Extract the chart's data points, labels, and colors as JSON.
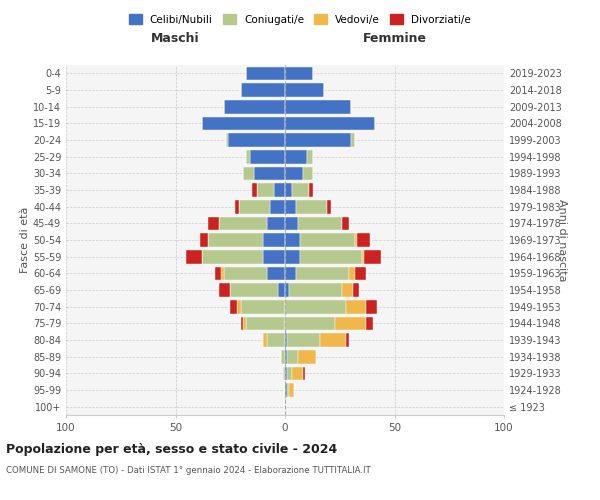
{
  "age_groups": [
    "100+",
    "95-99",
    "90-94",
    "85-89",
    "80-84",
    "75-79",
    "70-74",
    "65-69",
    "60-64",
    "55-59",
    "50-54",
    "45-49",
    "40-44",
    "35-39",
    "30-34",
    "25-29",
    "20-24",
    "15-19",
    "10-14",
    "5-9",
    "0-4"
  ],
  "birth_years": [
    "≤ 1923",
    "1924-1928",
    "1929-1933",
    "1934-1938",
    "1939-1943",
    "1944-1948",
    "1949-1953",
    "1954-1958",
    "1959-1963",
    "1964-1968",
    "1969-1973",
    "1974-1978",
    "1979-1983",
    "1984-1988",
    "1989-1993",
    "1994-1998",
    "1999-2003",
    "2004-2008",
    "2009-2013",
    "2014-2018",
    "2019-2023"
  ],
  "male": {
    "celibi": [
      0,
      0,
      0,
      0,
      0,
      0,
      0,
      3,
      8,
      10,
      10,
      8,
      7,
      5,
      14,
      16,
      26,
      38,
      28,
      20,
      18
    ],
    "coniugati": [
      0,
      0,
      1,
      2,
      8,
      18,
      20,
      22,
      20,
      28,
      25,
      22,
      14,
      8,
      5,
      2,
      1,
      0,
      0,
      0,
      0
    ],
    "vedovi": [
      0,
      0,
      0,
      0,
      2,
      1,
      2,
      0,
      1,
      0,
      0,
      0,
      0,
      0,
      0,
      0,
      0,
      0,
      0,
      0,
      0
    ],
    "divorziati": [
      0,
      0,
      0,
      0,
      0,
      1,
      3,
      5,
      3,
      7,
      4,
      5,
      2,
      2,
      0,
      0,
      0,
      0,
      0,
      0,
      0
    ]
  },
  "female": {
    "nubili": [
      0,
      1,
      1,
      1,
      1,
      0,
      0,
      2,
      5,
      7,
      7,
      6,
      5,
      3,
      8,
      10,
      30,
      41,
      30,
      18,
      13
    ],
    "coniugate": [
      0,
      1,
      2,
      5,
      15,
      23,
      28,
      24,
      24,
      28,
      25,
      20,
      14,
      8,
      5,
      3,
      2,
      0,
      0,
      0,
      0
    ],
    "vedove": [
      0,
      2,
      5,
      8,
      12,
      14,
      9,
      5,
      3,
      1,
      1,
      0,
      0,
      0,
      0,
      0,
      0,
      0,
      0,
      0,
      0
    ],
    "divorziate": [
      0,
      0,
      1,
      0,
      1,
      3,
      5,
      3,
      5,
      8,
      6,
      3,
      2,
      2,
      0,
      0,
      0,
      0,
      0,
      0,
      0
    ]
  },
  "colors": {
    "celibi": "#4472c4",
    "coniugati": "#b5c98e",
    "vedovi": "#f0b84b",
    "divorziati": "#cc2222"
  },
  "title": "Popolazione per età, sesso e stato civile - 2024",
  "subtitle": "COMUNE DI SAMONE (TO) - Dati ISTAT 1° gennaio 2024 - Elaborazione TUTTITALIA.IT",
  "xlabel_left": "Maschi",
  "xlabel_right": "Femmine",
  "ylabel_left": "Fasce di età",
  "ylabel_right": "Anni di nascita",
  "xlim": 100,
  "legend_labels": [
    "Celibi/Nubili",
    "Coniugati/e",
    "Vedovi/e",
    "Divorziati/e"
  ]
}
